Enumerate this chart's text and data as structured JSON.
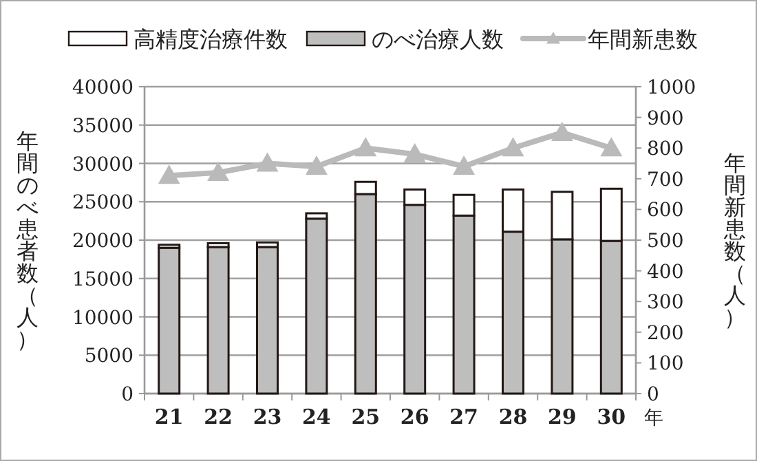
{
  "chart_data": {
    "type": "bar",
    "stacked": true,
    "categories": [
      "21",
      "22",
      "23",
      "24",
      "25",
      "26",
      "27",
      "28",
      "29",
      "30"
    ],
    "series": [
      {
        "name": "のべ治療人数",
        "color": "#bdbebd",
        "values": [
          19000,
          19100,
          19100,
          22800,
          26000,
          24600,
          23200,
          21100,
          20100,
          19900
        ]
      },
      {
        "name": "高精度治療件数",
        "color": "#ffffff",
        "values": [
          400,
          500,
          600,
          700,
          1600,
          2000,
          2700,
          5500,
          6200,
          6800
        ]
      },
      {
        "name": "年間新患数",
        "type": "line",
        "axis": "y2",
        "color": "#b9bab9",
        "marker": "triangle",
        "values": [
          710,
          720,
          750,
          740,
          800,
          780,
          740,
          800,
          850,
          800
        ]
      }
    ],
    "ylim": [
      0,
      40000
    ],
    "yticks": [
      0,
      5000,
      10000,
      15000,
      20000,
      25000,
      30000,
      35000,
      40000
    ],
    "y2lim": [
      0,
      1000
    ],
    "y2ticks": [
      0,
      100,
      200,
      300,
      400,
      500,
      600,
      700,
      800,
      900,
      1000
    ],
    "ylabel": "年間のべ患者数（人）",
    "y2label": "年間新患数（人）",
    "xlabel": "年",
    "grid": "y",
    "legend": "top"
  }
}
